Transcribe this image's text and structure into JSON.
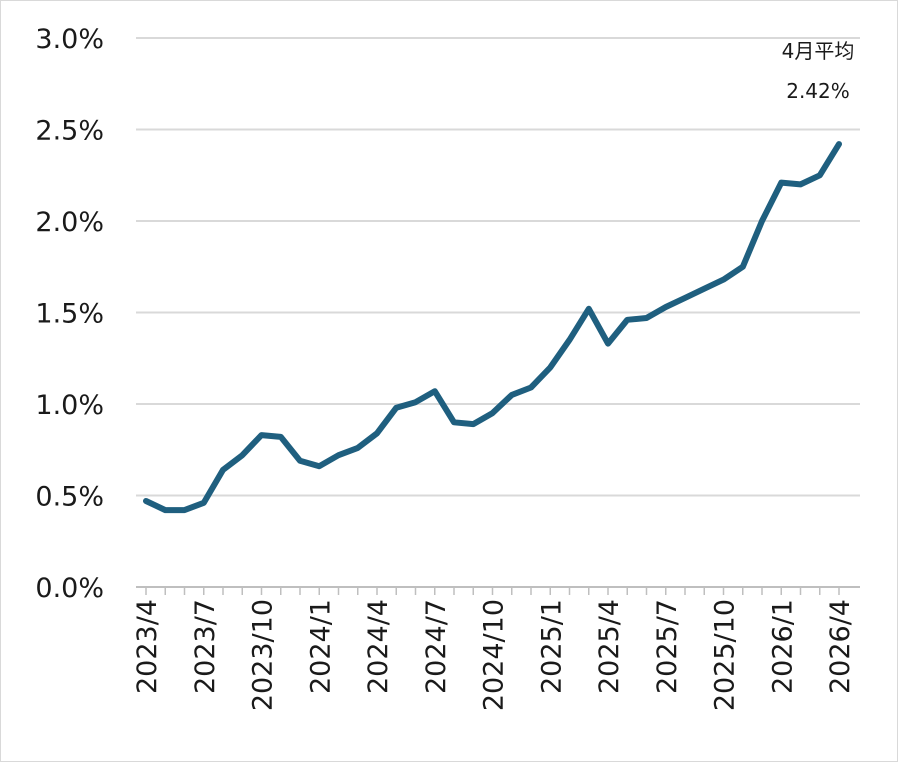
{
  "chart_data": {
    "type": "line",
    "title": "",
    "xlabel": "",
    "ylabel": "",
    "ylim": [
      0,
      3.0
    ],
    "yticks": [
      "0.0%",
      "0.5%",
      "1.0%",
      "1.5%",
      "2.0%",
      "2.5%",
      "3.0%"
    ],
    "ytick_values": [
      0,
      0.5,
      1.0,
      1.5,
      2.0,
      2.5,
      3.0
    ],
    "xticks": [
      "2023/4",
      "2023/7",
      "2023/10",
      "2024/1",
      "2024/4",
      "2024/7",
      "2024/10",
      "2025/1",
      "2025/4",
      "2025/7",
      "2025/10",
      "2026/1",
      "2026/4"
    ],
    "grid": "horizontal",
    "line_color": "#1f5f7f",
    "x": [
      "2023/4",
      "2023/5",
      "2023/6",
      "2023/7",
      "2023/8",
      "2023/9",
      "2023/10",
      "2023/11",
      "2023/12",
      "2024/1",
      "2024/2",
      "2024/3",
      "2024/4",
      "2024/5",
      "2024/6",
      "2024/7",
      "2024/8",
      "2024/9",
      "2024/10",
      "2024/11",
      "2024/12",
      "2025/1",
      "2025/2",
      "2025/3",
      "2025/4",
      "2025/5",
      "2025/6",
      "2025/7",
      "2025/8",
      "2025/9",
      "2025/10",
      "2025/11",
      "2025/12",
      "2026/1",
      "2026/2",
      "2026/3",
      "2026/4"
    ],
    "values": [
      0.47,
      0.42,
      0.42,
      0.46,
      0.64,
      0.72,
      0.83,
      0.82,
      0.69,
      0.66,
      0.72,
      0.76,
      0.84,
      0.98,
      1.01,
      1.07,
      0.9,
      0.89,
      0.95,
      1.05,
      1.09,
      1.2,
      1.35,
      1.52,
      1.33,
      1.46,
      1.47,
      1.53,
      1.58,
      1.63,
      1.68,
      1.75,
      2.0,
      2.21,
      2.2,
      2.25,
      2.42
    ],
    "annotation": {
      "label": "4月平均",
      "value": "2.42%"
    }
  }
}
